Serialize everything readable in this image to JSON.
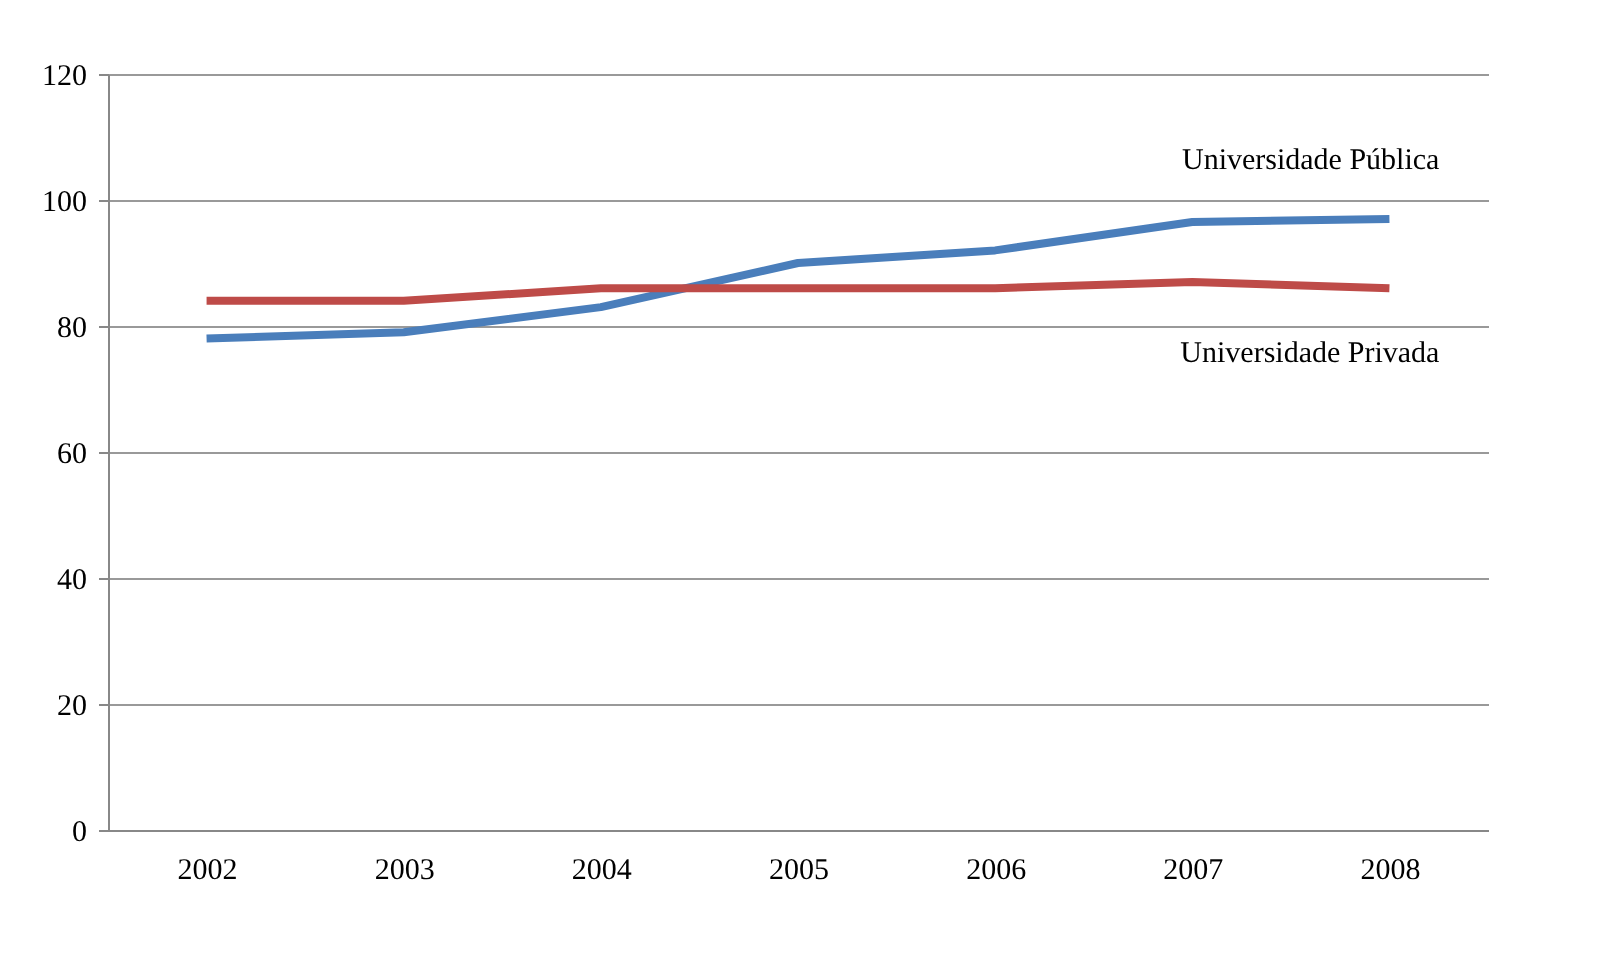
{
  "chart_data": {
    "type": "line",
    "categories": [
      "2002",
      "2003",
      "2004",
      "2005",
      "2006",
      "2007",
      "2008"
    ],
    "series": [
      {
        "name": "Universidade Pública",
        "color": "#4a7ebb",
        "values": [
          78,
          79,
          83,
          90,
          92,
          96.5,
          97
        ]
      },
      {
        "name": "Universidade Privada",
        "color": "#be4b48",
        "values": [
          84,
          84,
          86,
          86,
          86,
          87,
          86
        ]
      }
    ],
    "ylim": [
      0,
      120
    ],
    "yticks": [
      0,
      20,
      40,
      60,
      80,
      100,
      120
    ],
    "grid": "y",
    "legend": false,
    "marker": "none",
    "line_style": "solid"
  }
}
